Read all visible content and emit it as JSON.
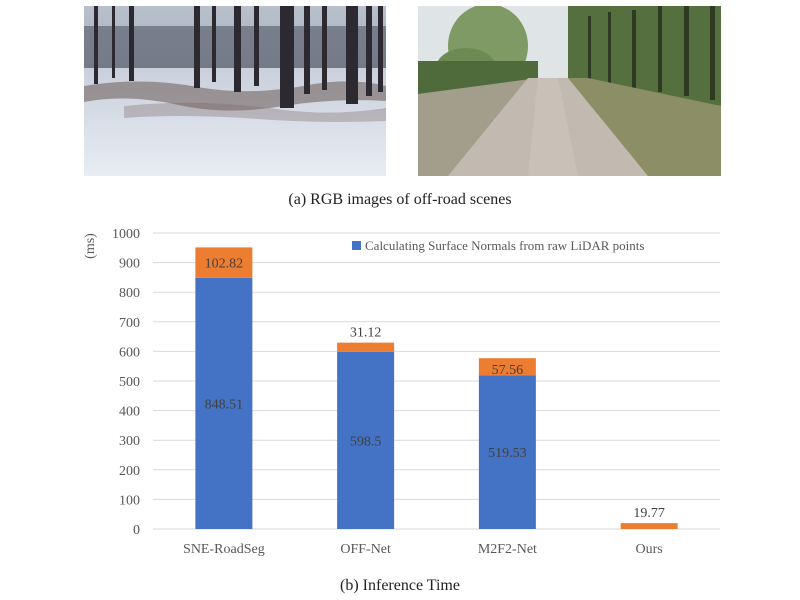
{
  "captions": {
    "a": "(a) RGB images of off-road scenes",
    "b": "(b) Inference Time"
  },
  "images": {
    "left": "snowy forest scene with dark tree trunks and snow-covered ground",
    "right": "dirt road lined with green poplar trees"
  },
  "colors": {
    "normals": "#4472C4",
    "inference": "#ED7D31",
    "grid": "#D9D9D9",
    "axis_text": "#595959"
  },
  "chart_data": {
    "type": "bar",
    "stacked": true,
    "categories": [
      "SNE-RoadSeg",
      "OFF-Net",
      "M2F2-Net",
      "Ours"
    ],
    "series": [
      {
        "name": "Calculating Surface Normals from raw LiDAR points",
        "values": [
          848.51,
          598.5,
          519.53,
          0
        ],
        "labels": [
          "848.51",
          "598.5",
          "519.53",
          ""
        ]
      },
      {
        "values": [
          102.82,
          31.12,
          57.56,
          19.77
        ],
        "labels": [
          "102.82",
          "31.12",
          "57.56",
          "19.77"
        ]
      }
    ],
    "ylabel": "(ms)",
    "ylim": [
      0,
      1000
    ],
    "yticks": [
      "0",
      "100",
      "200",
      "300",
      "400",
      "500",
      "600",
      "700",
      "800",
      "900",
      "1000"
    ],
    "grid": true,
    "legend_position": "top-right",
    "legend_entries": [
      "Calculating Surface Normals from raw LiDAR points"
    ]
  }
}
